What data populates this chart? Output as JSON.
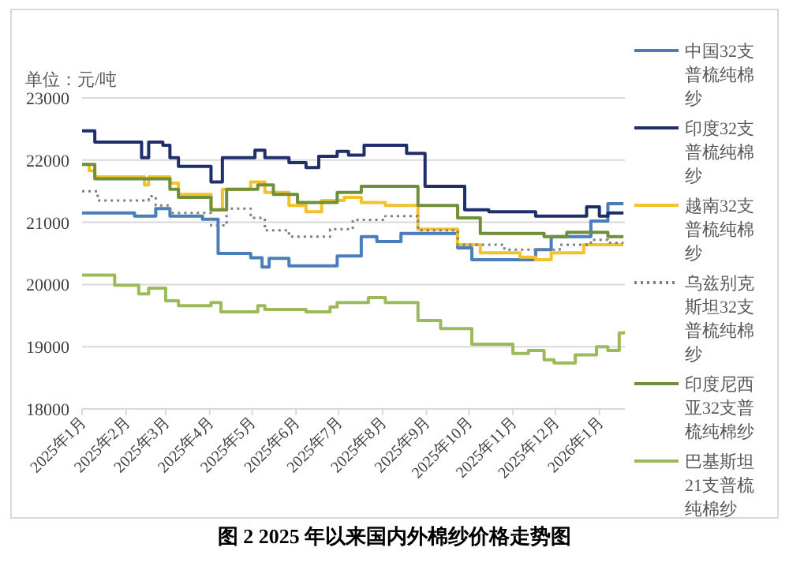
{
  "chart_data": {
    "type": "step",
    "title": "图 2 2025 年以来国内外棉纱价格走势图",
    "ylabel": "单位：元/吨",
    "grid": "y",
    "legend": "right",
    "xlim": [
      "2025-01-01",
      "2026-01-19"
    ],
    "xticks": [
      {
        "value": "2025-01-01",
        "label": "2025年1月"
      },
      {
        "value": "2025-02-01",
        "label": "2025年2月"
      },
      {
        "value": "2025-03-01",
        "label": "2025年3月"
      },
      {
        "value": "2025-04-01",
        "label": "2025年4月"
      },
      {
        "value": "2025-05-01",
        "label": "2025年5月"
      },
      {
        "value": "2025-06-01",
        "label": "2025年6月"
      },
      {
        "value": "2025-07-01",
        "label": "2025年7月"
      },
      {
        "value": "2025-08-01",
        "label": "2025年8月"
      },
      {
        "value": "2025-09-01",
        "label": "2025年9月"
      },
      {
        "value": "2025-10-01",
        "label": "2025年10月"
      },
      {
        "value": "2025-11-01",
        "label": "2025年11月"
      },
      {
        "value": "2025-12-01",
        "label": "2025年12月"
      },
      {
        "value": "2026-01-01",
        "label": "2026年1月"
      }
    ],
    "ylim": [
      18000,
      23000
    ],
    "yticks": [
      18000,
      19000,
      20000,
      21000,
      22000,
      23000
    ],
    "series": [
      {
        "name": "中国32支普梳纯棉纱",
        "color": "#4a7ebb",
        "line_style": "solid",
        "x": [
          "2025-01-01",
          "2025-02-07",
          "2025-02-22",
          "2025-03-04",
          "2025-03-27",
          "2025-04-07",
          "2025-04-30",
          "2025-05-08",
          "2025-05-13",
          "2025-05-27",
          "2025-06-30",
          "2025-07-17",
          "2025-07-28",
          "2025-08-14",
          "2025-09-23",
          "2025-10-03",
          "2025-11-17",
          "2025-11-28",
          "2025-12-26",
          "2026-01-07",
          "2026-01-18"
        ],
        "values": [
          21150,
          21100,
          21220,
          21100,
          21050,
          20500,
          20430,
          20280,
          20420,
          20300,
          20460,
          20770,
          20690,
          20820,
          20590,
          20400,
          20560,
          20770,
          21020,
          21300,
          21300
        ]
      },
      {
        "name": "印度32支普梳纯棉纱",
        "color": "#1f2f6b",
        "line_style": "solid",
        "x": [
          "2025-01-01",
          "2025-01-10",
          "2025-02-12",
          "2025-02-17",
          "2025-02-27",
          "2025-03-04",
          "2025-03-10",
          "2025-04-02",
          "2025-04-10",
          "2025-05-03",
          "2025-05-10",
          "2025-05-27",
          "2025-06-08",
          "2025-06-17",
          "2025-06-30",
          "2025-07-08",
          "2025-07-19",
          "2025-08-18",
          "2025-08-31",
          "2025-09-28",
          "2025-10-15",
          "2025-11-17",
          "2025-12-23",
          "2026-01-01",
          "2026-01-07",
          "2026-01-18"
        ],
        "values": [
          22470,
          22290,
          22040,
          22290,
          22240,
          22040,
          21900,
          21650,
          22040,
          22160,
          22040,
          21960,
          21880,
          22060,
          22140,
          22080,
          22240,
          22110,
          21580,
          21200,
          21170,
          21100,
          21250,
          21100,
          21150,
          21150
        ]
      },
      {
        "name": "越南32支普梳纯棉纱",
        "color": "#f2c12e",
        "line_style": "solid",
        "x": [
          "2025-01-01",
          "2025-01-06",
          "2025-01-10",
          "2025-02-14",
          "2025-02-17",
          "2025-03-04",
          "2025-03-10",
          "2025-04-02",
          "2025-04-10",
          "2025-04-30",
          "2025-05-10",
          "2025-05-27",
          "2025-06-08",
          "2025-06-19",
          "2025-07-05",
          "2025-07-17",
          "2025-08-03",
          "2025-08-26",
          "2025-09-23",
          "2025-10-09",
          "2025-11-06",
          "2025-11-17",
          "2025-11-28",
          "2025-12-21",
          "2026-01-18"
        ],
        "values": [
          21930,
          21830,
          21730,
          21600,
          21730,
          21630,
          21450,
          21200,
          21530,
          21650,
          21480,
          21270,
          21170,
          21350,
          21400,
          21320,
          21270,
          20890,
          20640,
          20510,
          20440,
          20400,
          20510,
          20640,
          20640
        ]
      },
      {
        "name": "乌兹别克斯坦32支普梳纯棉纱",
        "color": "#7f7f7f",
        "line_style": "dotted",
        "x": [
          "2025-01-01",
          "2025-01-12",
          "2025-02-17",
          "2025-02-22",
          "2025-03-04",
          "2025-04-02",
          "2025-04-13",
          "2025-04-30",
          "2025-05-10",
          "2025-05-27",
          "2025-06-25",
          "2025-07-11",
          "2025-08-03",
          "2025-08-26",
          "2025-09-23",
          "2025-10-26",
          "2025-12-04",
          "2025-12-26",
          "2026-01-07",
          "2026-01-18"
        ],
        "values": [
          21500,
          21350,
          21420,
          21270,
          21150,
          20950,
          21220,
          21070,
          20870,
          20770,
          20890,
          21040,
          21100,
          20870,
          20640,
          20560,
          20640,
          20720,
          20670,
          20670
        ]
      },
      {
        "name": "印度尼西亚32支普梳纯棉纱",
        "color": "#6f8f3a",
        "line_style": "solid",
        "x": [
          "2025-01-01",
          "2025-01-10",
          "2025-03-04",
          "2025-03-10",
          "2025-04-02",
          "2025-04-13",
          "2025-05-05",
          "2025-05-16",
          "2025-06-02",
          "2025-06-30",
          "2025-07-17",
          "2025-08-26",
          "2025-09-23",
          "2025-10-09",
          "2025-11-23",
          "2025-12-09",
          "2026-01-07",
          "2026-01-18"
        ],
        "values": [
          21930,
          21700,
          21530,
          21400,
          21200,
          21530,
          21600,
          21450,
          21320,
          21480,
          21580,
          21270,
          21070,
          20820,
          20770,
          20840,
          20770,
          20770
        ]
      },
      {
        "name": "巴基斯坦21支普梳纯棉纱",
        "color": "#9bbb59",
        "line_style": "solid",
        "x": [
          "2025-01-01",
          "2025-01-24",
          "2025-02-10",
          "2025-02-17",
          "2025-03-01",
          "2025-03-10",
          "2025-04-02",
          "2025-04-09",
          "2025-05-05",
          "2025-05-10",
          "2025-06-08",
          "2025-06-25",
          "2025-06-30",
          "2025-07-22",
          "2025-08-03",
          "2025-08-26",
          "2025-09-11",
          "2025-10-03",
          "2025-11-01",
          "2025-11-12",
          "2025-11-23",
          "2025-11-30",
          "2025-12-15",
          "2025-12-30",
          "2026-01-07",
          "2026-01-15",
          "2026-01-18"
        ],
        "values": [
          20150,
          19990,
          19850,
          19940,
          19740,
          19660,
          19710,
          19560,
          19660,
          19600,
          19560,
          19640,
          19710,
          19790,
          19710,
          19420,
          19290,
          19040,
          18890,
          18940,
          18790,
          18740,
          18870,
          19000,
          18940,
          19220,
          19250
        ]
      }
    ]
  }
}
